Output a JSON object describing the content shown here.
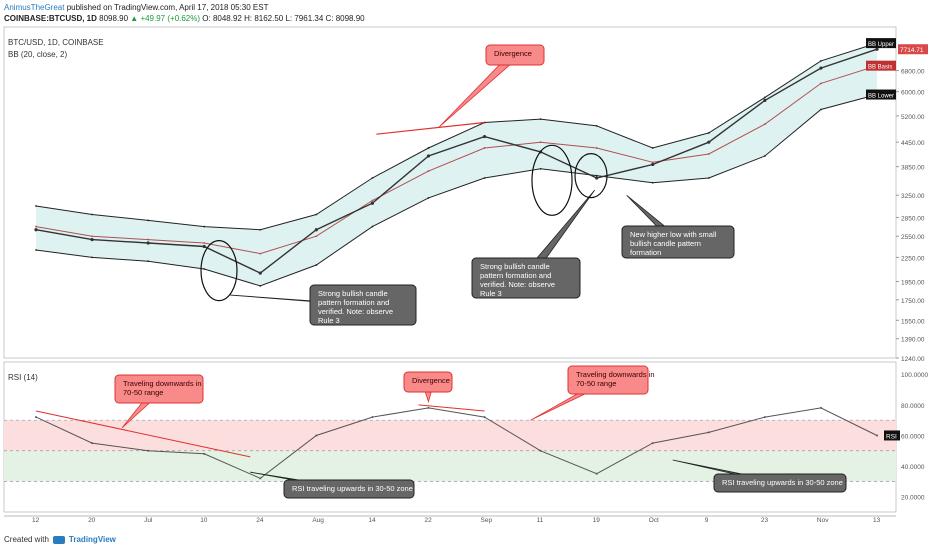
{
  "header": {
    "author": "AnimusTheGreat",
    "published": "published on TradingView.com, April 17, 2018 05:30 EST",
    "symbol": "COINBASE:BTCUSD, 1D",
    "last": "8098.90",
    "change": "▲ +49.97 (+0.62%)",
    "ohlc": "O: 8048.92 H: 8162.50 L: 7961.34 C: 8098.90"
  },
  "footer": {
    "prefix": "Created with",
    "brand": "TradingView"
  },
  "chart_data": [
    {
      "type": "line",
      "title": "BTC/USD, 1D, COINBASE",
      "subtitle": "BB (20, close, 2)",
      "yscale": "log",
      "yticks": [
        1240,
        1390,
        1550,
        1750,
        1950,
        2250,
        2550,
        2850,
        3250,
        3850,
        4450,
        5200,
        6000,
        6800
      ],
      "ylim": [
        1240,
        8800
      ],
      "xticks": [
        "12",
        "20",
        "Jul",
        "10",
        "24",
        "Aug",
        "14",
        "22",
        "Sep",
        "11",
        "19",
        "Oct",
        "9",
        "23",
        "Nov",
        "13"
      ],
      "x_points": [
        "12",
        "20",
        "Jul",
        "10",
        "24",
        "Aug",
        "14",
        "22",
        "Sep",
        "11",
        "19",
        "Oct",
        "9",
        "23",
        "Nov",
        "13"
      ],
      "series": [
        {
          "name": "BB Upper",
          "values": [
            3050,
            2900,
            2800,
            2700,
            2650,
            2900,
            3600,
            4300,
            5000,
            5100,
            4900,
            4300,
            4700,
            5800,
            7200,
            8000
          ],
          "color": "#222222"
        },
        {
          "name": "BB Basis",
          "values": [
            2700,
            2550,
            2500,
            2450,
            2300,
            2550,
            3150,
            3750,
            4300,
            4450,
            4300,
            3950,
            4150,
            4950,
            6300,
            7000
          ],
          "color": "#b05050"
        },
        {
          "name": "BB Lower",
          "values": [
            2350,
            2250,
            2200,
            2100,
            1900,
            2150,
            2700,
            3200,
            3600,
            3800,
            3650,
            3500,
            3600,
            4100,
            5400,
            5900
          ],
          "color": "#222222"
        },
        {
          "name": "Price",
          "values": [
            2650,
            2500,
            2450,
            2400,
            2050,
            2650,
            3100,
            4100,
            4600,
            4200,
            3600,
            3900,
            4450,
            5700,
            6900,
            7714.71
          ],
          "color": "#333333"
        }
      ],
      "last_price_label": "7714.71",
      "band_labels": [
        "BB Upper",
        "BB Basis",
        "BB Lower"
      ],
      "annotations": [
        {
          "text": "Divergence",
          "style": "red-callout"
        },
        {
          "text": "Strong bullish candle pattern formation and verified. Note: observe Rule 3",
          "style": "dark-callout"
        },
        {
          "text": "Strong bullish candle pattern formation and verified. Note: observe Rule 3",
          "style": "dark-callout"
        },
        {
          "text": "New higher low with small bullish candle pattern formation",
          "style": "dark-callout"
        }
      ]
    },
    {
      "type": "line",
      "title": "RSI (14)",
      "yticks": [
        "20.0000",
        "40.0000",
        "60.0000",
        "80.0000",
        "100.0000"
      ],
      "ylim": [
        10,
        108
      ],
      "bands": [
        {
          "from": 70,
          "to": 50,
          "color": "#fcdede"
        },
        {
          "from": 50,
          "to": 30,
          "color": "#e3f2e3"
        }
      ],
      "x_points": [
        "12",
        "20",
        "Jul",
        "10",
        "24",
        "Aug",
        "14",
        "22",
        "Sep",
        "11",
        "19",
        "Oct",
        "9",
        "23",
        "Nov",
        "13"
      ],
      "series": [
        {
          "name": "RSI",
          "values": [
            72,
            55,
            50,
            48,
            32,
            60,
            72,
            78,
            72,
            50,
            35,
            55,
            62,
            72,
            78,
            60
          ],
          "color": "#555555"
        }
      ],
      "value_label": "RSI",
      "annotations": [
        {
          "text": "Traveling downwards in 70-50 range",
          "style": "red-callout"
        },
        {
          "text": "Divergence",
          "style": "red-callout"
        },
        {
          "text": "Traveling downwards in 70-50 range",
          "style": "red-callout"
        },
        {
          "text": "RSI traveling upwards in 30-50 zone",
          "style": "dark-callout"
        },
        {
          "text": "RSI traveling upwards in 30-50 zone",
          "style": "dark-callout"
        }
      ]
    }
  ]
}
